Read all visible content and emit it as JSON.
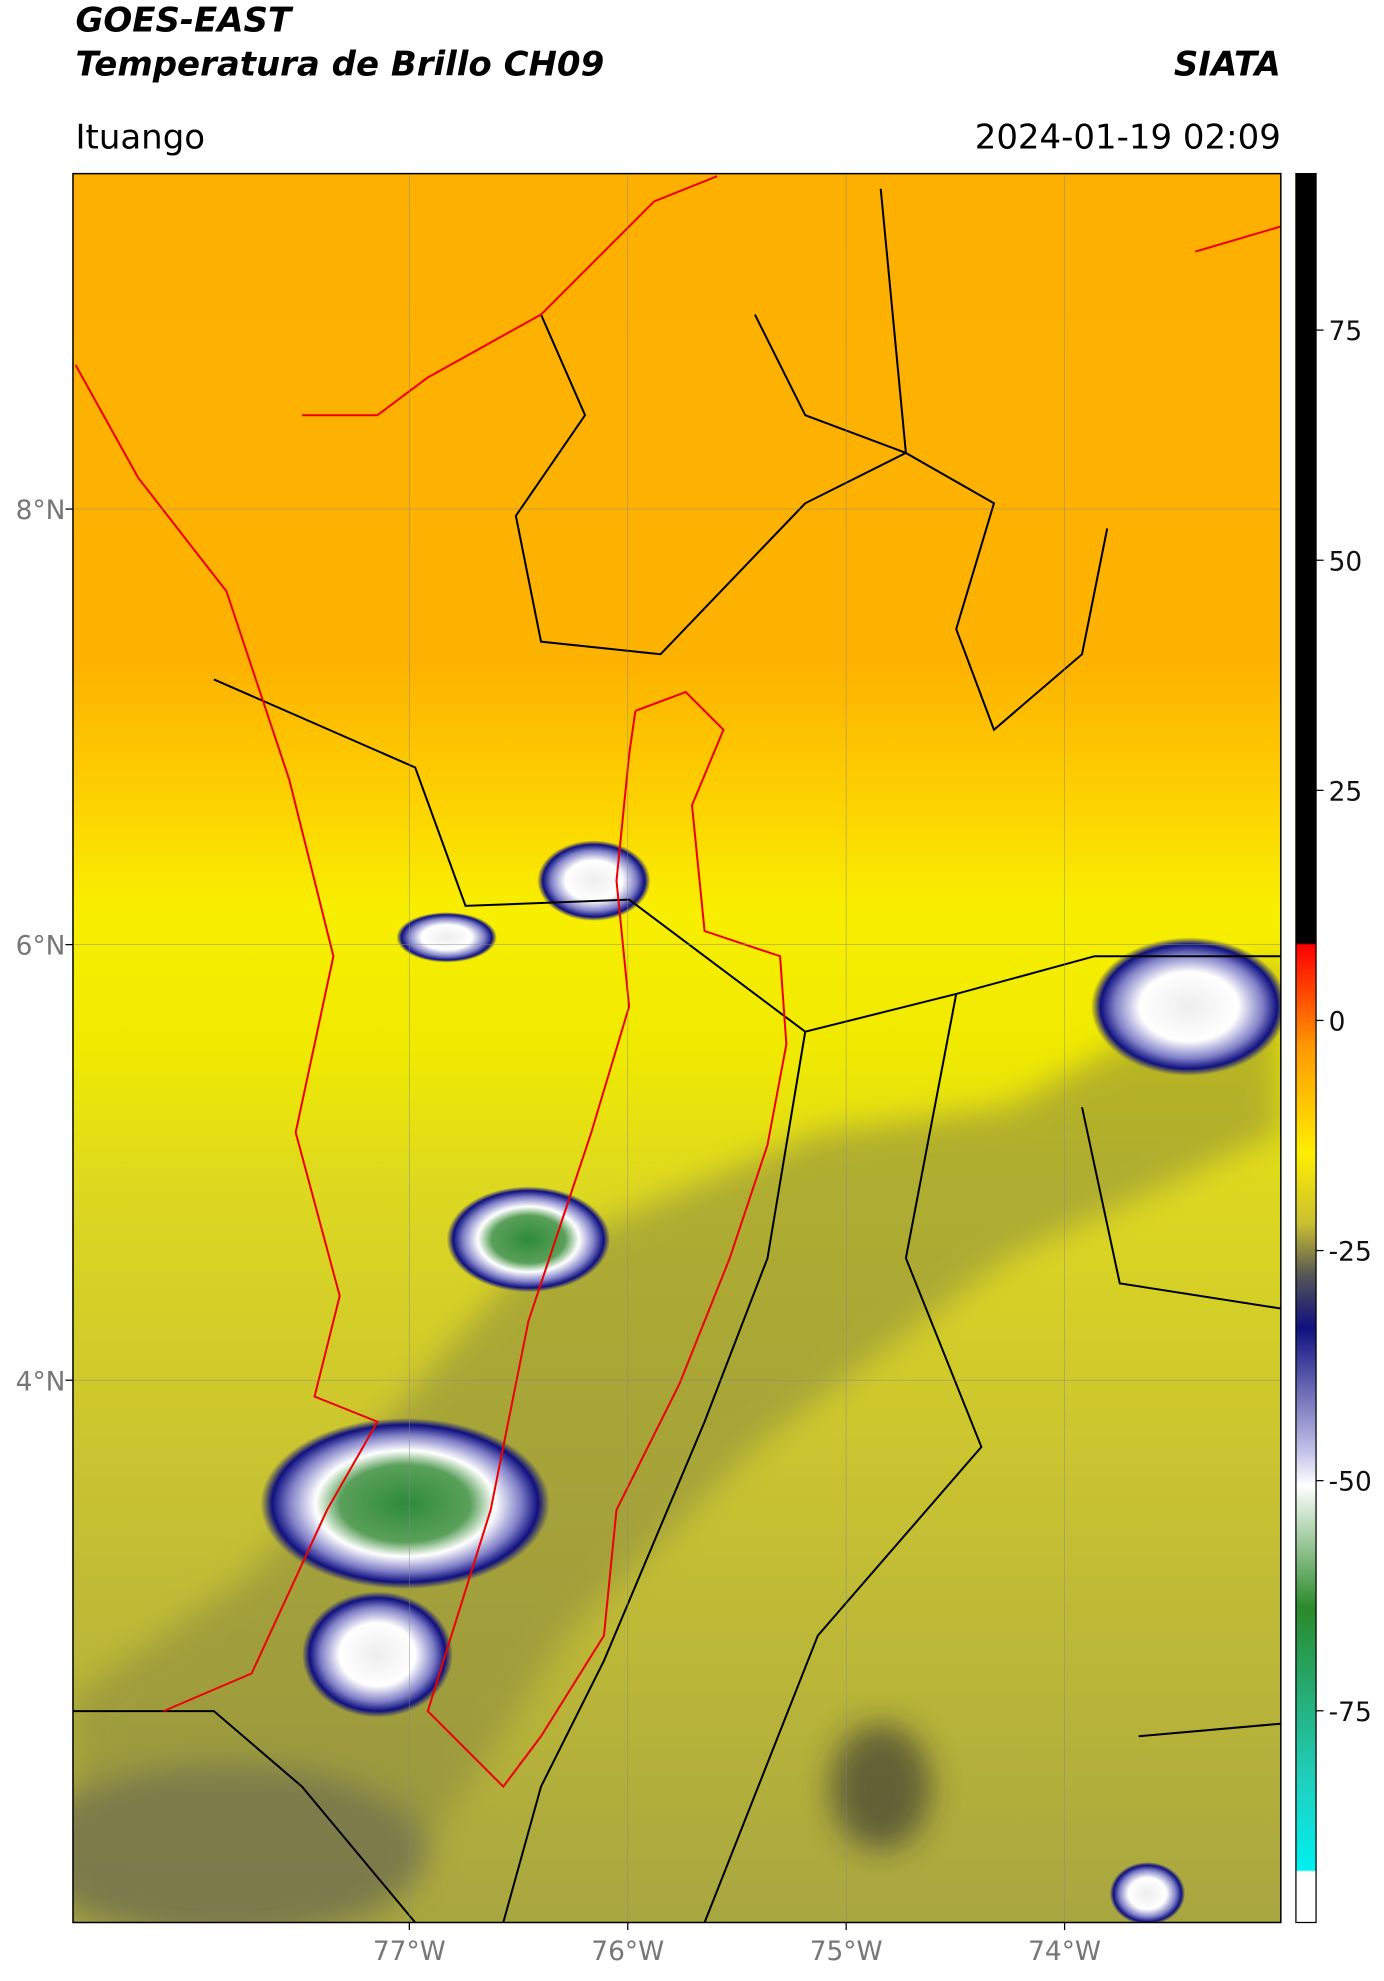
{
  "header": {
    "title": "GOES-EAST",
    "subtitle": "Temperatura de Brillo CH09",
    "source": "SIATA",
    "location": "Ituango",
    "datetime": "2024-01-19 02:09"
  },
  "map": {
    "xlim": [
      -78.54,
      -73.01
    ],
    "ylim": [
      1.51,
      9.54
    ],
    "xticks": [
      {
        "value": -77,
        "label": "77°W"
      },
      {
        "value": -76,
        "label": "76°W"
      },
      {
        "value": -75,
        "label": "75°W"
      },
      {
        "value": -74,
        "label": "74°W"
      }
    ],
    "yticks": [
      {
        "value": 8,
        "label": "8°N"
      },
      {
        "value": 6,
        "label": "6°N"
      },
      {
        "value": 4,
        "label": "4°N"
      }
    ]
  },
  "colorbar": {
    "ylim": [
      -98,
      92
    ],
    "ticks": [
      75,
      50,
      25,
      0,
      -25,
      -50,
      -75
    ]
  }
}
